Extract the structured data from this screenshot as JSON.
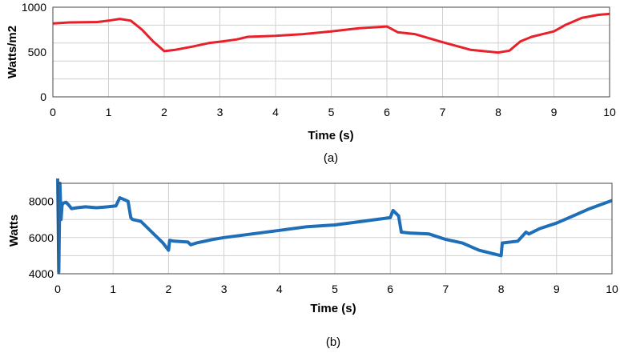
{
  "chart_data": [
    {
      "type": "line",
      "caption": "(a)",
      "xlabel": "Time (s)",
      "ylabel": "Watts/m2",
      "xlim": [
        0,
        10
      ],
      "ylim": [
        0,
        1000
      ],
      "xticks": [
        0,
        1,
        2,
        3,
        4,
        5,
        6,
        7,
        8,
        9,
        10
      ],
      "yticks": [
        0,
        500,
        1000
      ],
      "grid": true,
      "color": "#e8202a",
      "series": [
        {
          "x": [
            0,
            0.3,
            0.8,
            1.0,
            1.2,
            1.4,
            1.6,
            1.8,
            2.0,
            2.2,
            2.5,
            2.8,
            3.0,
            3.3,
            3.5,
            4.0,
            4.5,
            5.0,
            5.5,
            6.0,
            6.2,
            6.5,
            7.0,
            7.5,
            8.0,
            8.2,
            8.4,
            8.6,
            8.8,
            9.0,
            9.2,
            9.5,
            9.8,
            10.0
          ],
          "y": [
            820,
            830,
            835,
            850,
            870,
            850,
            750,
            620,
            510,
            525,
            560,
            600,
            615,
            640,
            670,
            680,
            700,
            730,
            765,
            785,
            720,
            700,
            610,
            525,
            495,
            515,
            620,
            670,
            700,
            730,
            800,
            880,
            915,
            925
          ]
        }
      ]
    },
    {
      "type": "line",
      "caption": "(b)",
      "xlabel": "Time (s)",
      "ylabel": "Watts",
      "xlim": [
        0,
        10
      ],
      "ylim": [
        4000,
        9000
      ],
      "xticks": [
        0,
        1,
        2,
        3,
        4,
        5,
        6,
        7,
        8,
        9,
        10
      ],
      "yticks": [
        4000,
        6000,
        8000
      ],
      "grid": true,
      "color": "#1f6fb8",
      "series": [
        {
          "x": [
            0,
            0.02,
            0.04,
            0.06,
            0.08,
            0.1,
            0.15,
            0.2,
            0.25,
            0.35,
            0.5,
            0.7,
            0.9,
            1.05,
            1.12,
            1.2,
            1.27,
            1.32,
            1.35,
            1.5,
            1.7,
            1.9,
            2.0,
            2.02,
            2.1,
            2.35,
            2.4,
            2.5,
            2.8,
            3.0,
            3.5,
            4.0,
            4.5,
            5.0,
            5.5,
            6.0,
            6.05,
            6.15,
            6.2,
            6.35,
            6.7,
            7.0,
            7.3,
            7.6,
            8.0,
            8.02,
            8.3,
            8.45,
            8.5,
            8.7,
            9.0,
            9.3,
            9.6,
            10.0
          ],
          "y": [
            9500,
            4100,
            9000,
            7000,
            7800,
            7900,
            7950,
            7800,
            7600,
            7650,
            7700,
            7650,
            7700,
            7750,
            8200,
            8100,
            8000,
            7100,
            7000,
            6900,
            6300,
            5700,
            5300,
            5850,
            5800,
            5750,
            5600,
            5700,
            5900,
            6000,
            6200,
            6400,
            6600,
            6700,
            6900,
            7100,
            7500,
            7200,
            6300,
            6250,
            6200,
            5900,
            5700,
            5300,
            5000,
            5700,
            5800,
            6300,
            6200,
            6500,
            6800,
            7200,
            7600,
            8050
          ]
        }
      ]
    }
  ]
}
